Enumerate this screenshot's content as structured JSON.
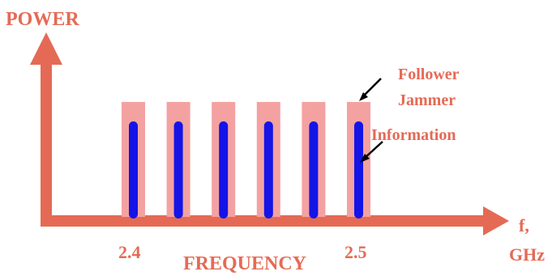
{
  "colors": {
    "axis": "#e56a55",
    "jammer": "#f4a1a1",
    "information": "#1414e6",
    "text": "#e56a55",
    "pointer": "#000000"
  },
  "labels": {
    "y_axis": "POWER",
    "x_axis": "FREQUENCY",
    "x_unit_line1": "f,",
    "x_unit_line2": "GHz",
    "tick_start": "2.4",
    "tick_end": "2.5",
    "follower_jammer_line1": "Follower",
    "follower_jammer_line2": "Jammer",
    "information": "Information"
  },
  "channels": {
    "count": 6
  }
}
